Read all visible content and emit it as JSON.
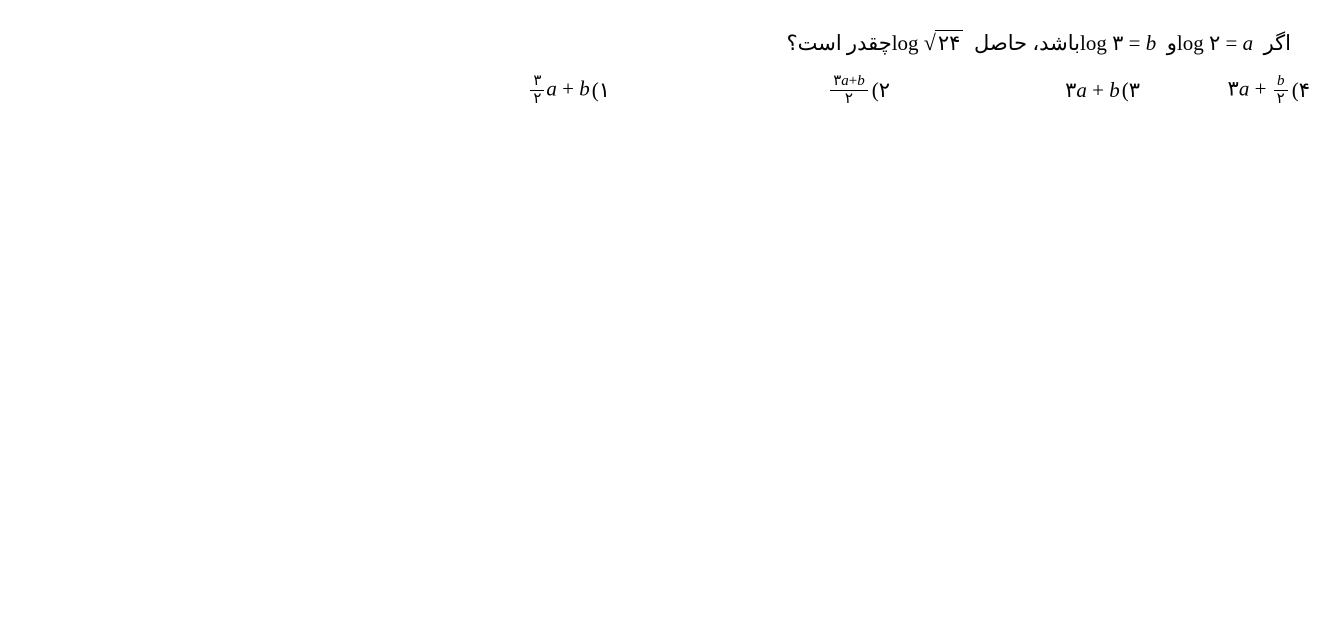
{
  "question": {
    "prefix": "اگر ",
    "log2_eq": "log ۲ = ",
    "var_a": "a",
    "and": " و ",
    "log3_eq": "log ۳ = ",
    "var_b": "b",
    "mid": " باشد، حاصل ",
    "log_sqrt": "log ",
    "radicand": "۲۴",
    "suffix": " چقدر است؟"
  },
  "answers": {
    "a1": {
      "label": "۱)",
      "frac_num": "۳",
      "frac_den": "۲",
      "rest_a": "a",
      "plus": " + ",
      "rest_b": "b"
    },
    "a2": {
      "label": "۲) ",
      "frac_num_pfa": "۳",
      "frac_num_a": "a",
      "frac_num_plus": "+",
      "frac_num_b": "b",
      "frac_den": "۲"
    },
    "a3": {
      "label": "۳) ",
      "three": "۳",
      "a": "a",
      "plus": " + ",
      "b": "b"
    },
    "a4": {
      "label": "۴)",
      "three": "۳",
      "a": "a",
      "plus": " + ",
      "frac_num": "b",
      "frac_den": "۲"
    }
  },
  "style": {
    "bg": "#ffffff",
    "text_color": "#000000",
    "question_fontsize": 21,
    "answer_fontsize": 21,
    "frac_fontsize": 15
  }
}
